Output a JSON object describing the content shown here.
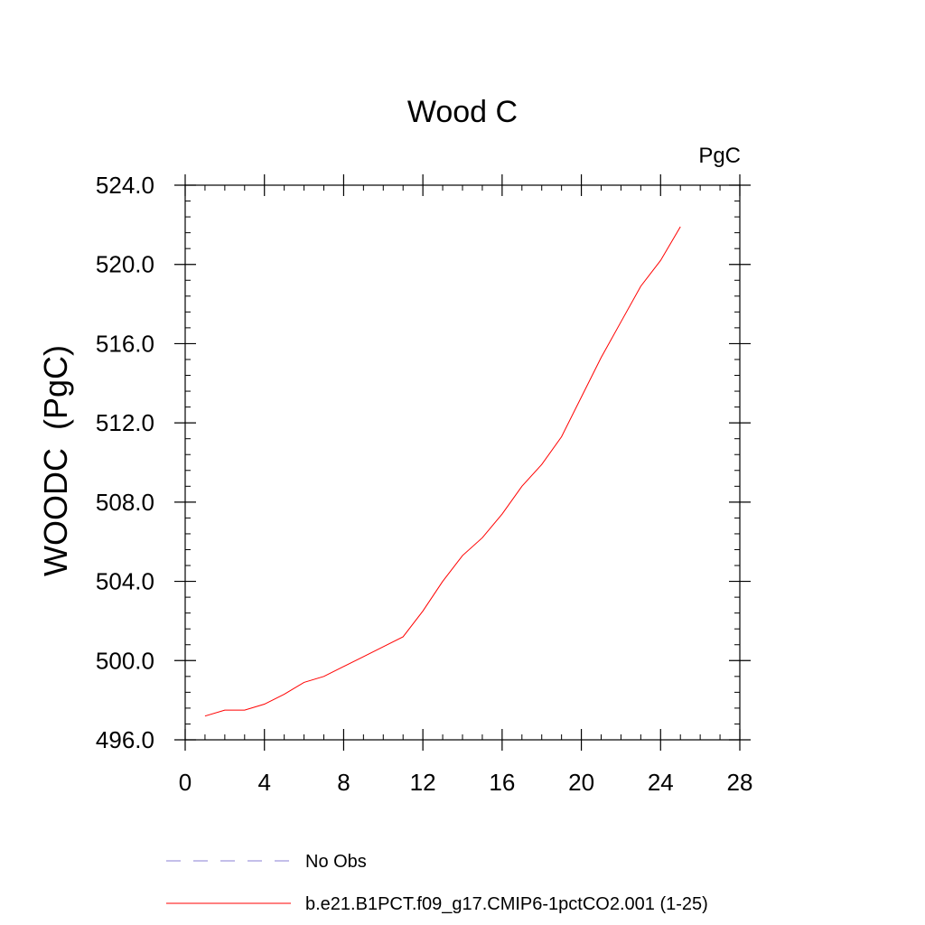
{
  "chart_data": {
    "type": "line",
    "title": "Wood C",
    "units_label": "PgC",
    "ylabel": "WOODC  (PgC)",
    "xlabel": "",
    "xlim": [
      0,
      28
    ],
    "ylim": [
      496,
      524
    ],
    "x_ticks": [
      0,
      4,
      8,
      12,
      16,
      20,
      24,
      28
    ],
    "x_tick_labels": [
      "0",
      "4",
      "8",
      "12",
      "16",
      "20",
      "24",
      "28"
    ],
    "y_ticks": [
      496,
      500,
      504,
      508,
      512,
      516,
      520,
      524
    ],
    "y_tick_labels": [
      "496.0",
      "500.0",
      "504.0",
      "508.0",
      "512.0",
      "516.0",
      "520.0",
      "524.0"
    ],
    "x_minor_step": 1,
    "y_minor_step": 0.8,
    "grid": false,
    "legend_position": "bottom",
    "series": [
      {
        "name": "b.e21.B1PCT.f09_g17.CMIP6-1pctCO2.001 (1-25)",
        "color": "#ff0000",
        "style": "solid",
        "x": [
          1,
          2,
          3,
          4,
          5,
          6,
          7,
          8,
          9,
          10,
          11,
          12,
          13,
          14,
          15,
          16,
          17,
          18,
          19,
          20,
          21,
          22,
          23,
          24,
          25
        ],
        "values": [
          497.2,
          497.5,
          497.5,
          497.8,
          498.3,
          498.9,
          499.2,
          499.7,
          500.2,
          500.7,
          501.2,
          502.5,
          504.0,
          505.3,
          506.2,
          507.4,
          508.8,
          509.9,
          511.3,
          513.3,
          515.3,
          517.1,
          518.9,
          520.2,
          521.9
        ]
      }
    ],
    "legend": [
      {
        "label": "No Obs",
        "color": "#8a7fd6",
        "style": "dashed"
      },
      {
        "label": "b.e21.B1PCT.f09_g17.CMIP6-1pctCO2.001 (1-25)",
        "color": "#ff0000",
        "style": "solid"
      }
    ]
  }
}
